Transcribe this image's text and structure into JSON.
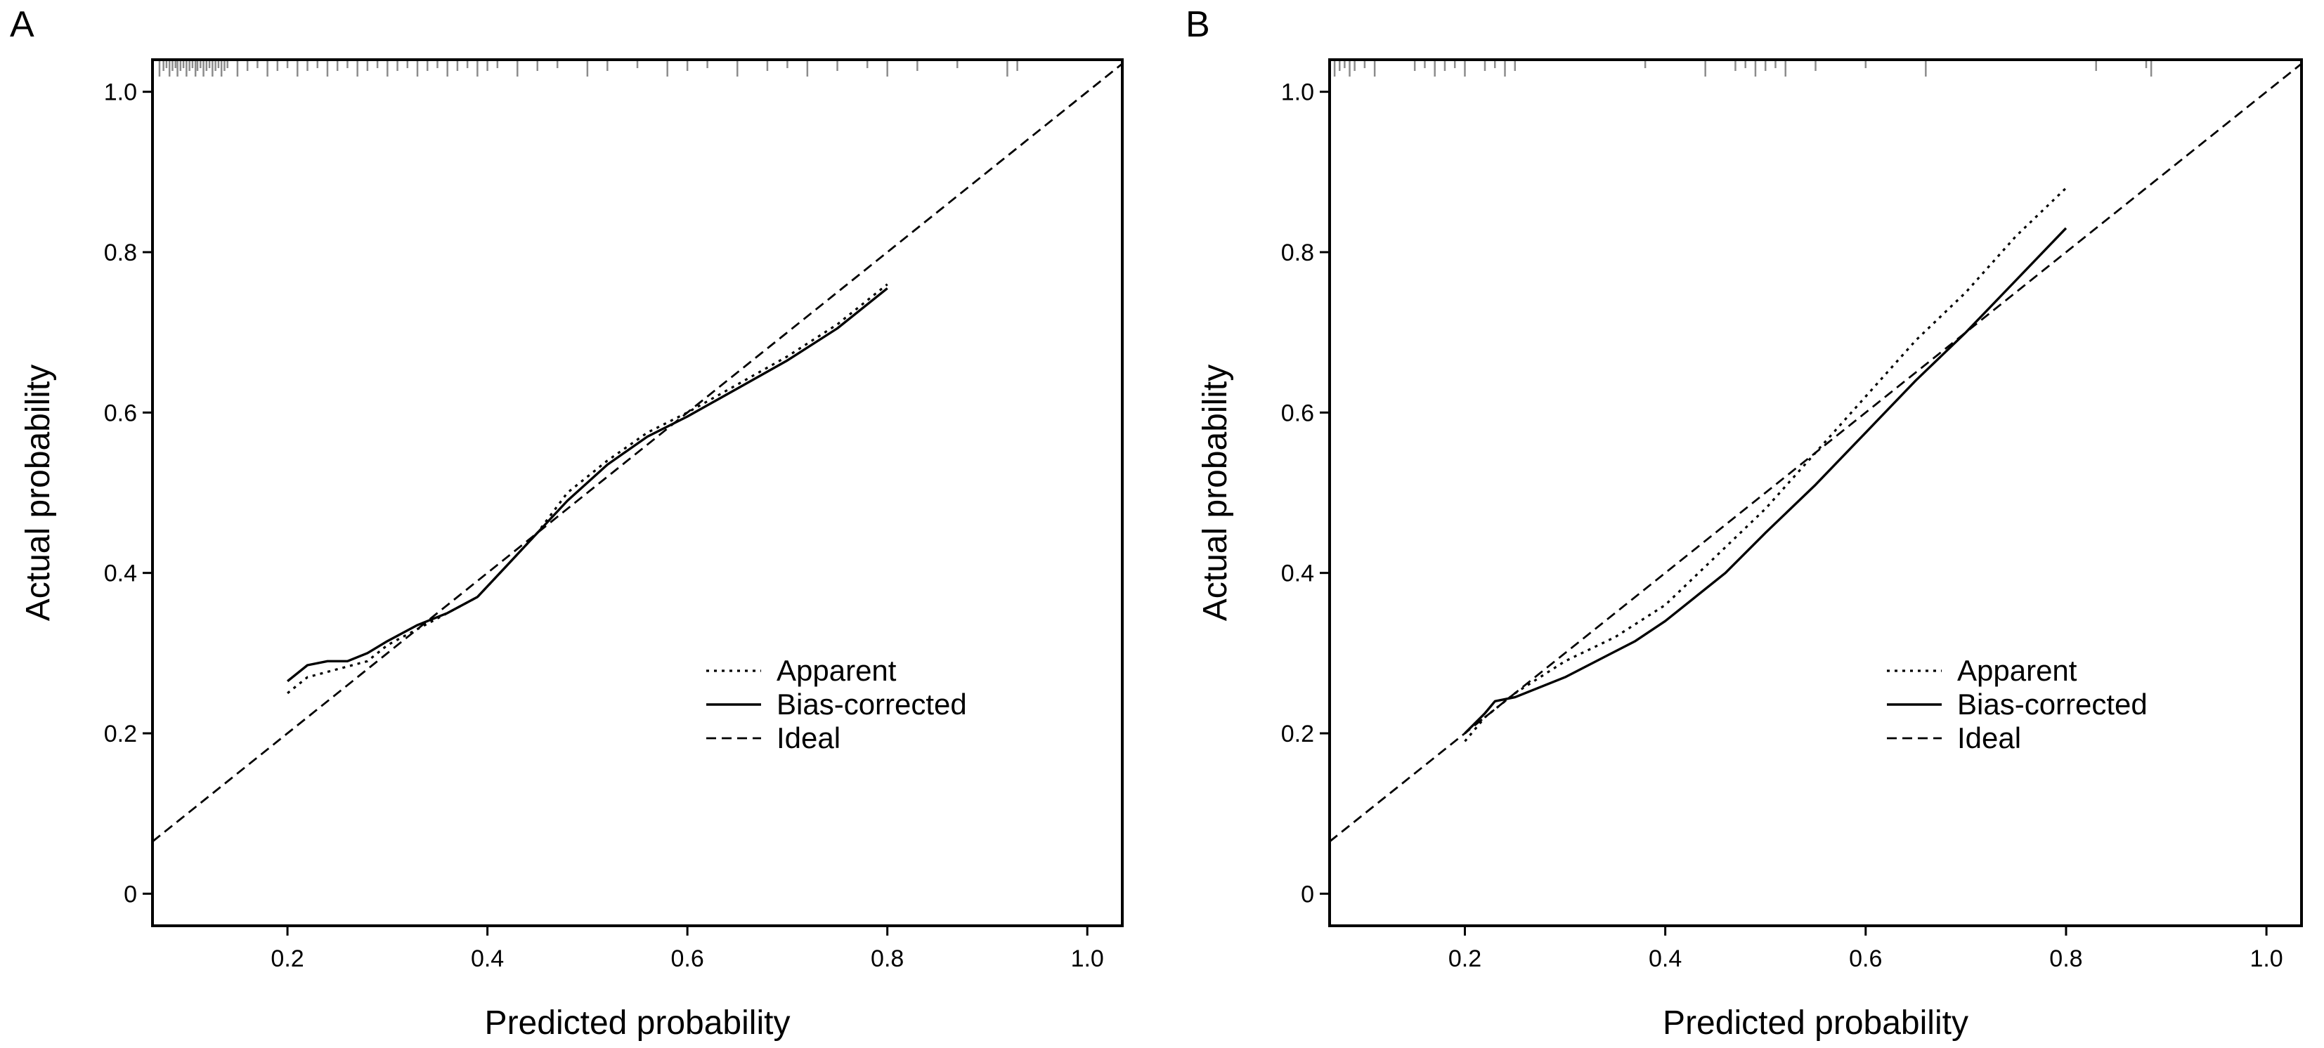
{
  "chart_data": [
    {
      "type": "line",
      "panel_label": "A",
      "xlabel": "Predicted probability",
      "ylabel": "Actual probability",
      "xlim": [
        0.065,
        1.035
      ],
      "ylim": [
        -0.04,
        1.04
      ],
      "xticks": [
        0.2,
        0.4,
        0.6,
        0.8,
        1.0
      ],
      "xtick_labels": [
        "0.2",
        "0.4",
        "0.6",
        "0.8",
        "1.0"
      ],
      "yticks": [
        0,
        0.2,
        0.4,
        0.6,
        0.8,
        1.0
      ],
      "ytick_labels": [
        "0",
        "0.2",
        "0.4",
        "0.6",
        "0.8",
        "1.0"
      ],
      "legend": {
        "position": "lower-right",
        "entries": [
          "Apparent",
          "Bias-corrected",
          "Ideal"
        ]
      },
      "series": [
        {
          "name": "Apparent",
          "style": "dotted",
          "x": [
            0.2,
            0.22,
            0.25,
            0.28,
            0.3,
            0.33,
            0.36,
            0.39,
            0.42,
            0.45,
            0.48,
            0.52,
            0.56,
            0.6,
            0.65,
            0.7,
            0.75,
            0.8
          ],
          "y": [
            0.25,
            0.27,
            0.28,
            0.29,
            0.31,
            0.33,
            0.35,
            0.37,
            0.41,
            0.45,
            0.5,
            0.54,
            0.575,
            0.6,
            0.635,
            0.67,
            0.71,
            0.76
          ]
        },
        {
          "name": "Bias-corrected",
          "style": "solid",
          "x": [
            0.2,
            0.22,
            0.24,
            0.26,
            0.28,
            0.3,
            0.33,
            0.36,
            0.39,
            0.42,
            0.45,
            0.48,
            0.52,
            0.56,
            0.6,
            0.65,
            0.7,
            0.75,
            0.8
          ],
          "y": [
            0.265,
            0.285,
            0.29,
            0.29,
            0.3,
            0.315,
            0.335,
            0.35,
            0.37,
            0.41,
            0.45,
            0.49,
            0.535,
            0.57,
            0.595,
            0.63,
            0.665,
            0.705,
            0.755
          ]
        },
        {
          "name": "Ideal",
          "style": "dashed",
          "x": [
            0.065,
            1.035
          ],
          "y": [
            0.065,
            1.035
          ]
        }
      ],
      "rug_x": [
        0.072,
        0.076,
        0.079,
        0.082,
        0.085,
        0.088,
        0.09,
        0.093,
        0.096,
        0.099,
        0.102,
        0.105,
        0.108,
        0.11,
        0.113,
        0.116,
        0.119,
        0.122,
        0.125,
        0.128,
        0.131,
        0.134,
        0.137,
        0.14,
        0.15,
        0.16,
        0.17,
        0.18,
        0.19,
        0.2,
        0.21,
        0.22,
        0.23,
        0.24,
        0.25,
        0.26,
        0.27,
        0.28,
        0.29,
        0.3,
        0.31,
        0.32,
        0.33,
        0.34,
        0.35,
        0.36,
        0.37,
        0.38,
        0.39,
        0.4,
        0.41,
        0.43,
        0.45,
        0.47,
        0.5,
        0.52,
        0.55,
        0.58,
        0.6,
        0.62,
        0.65,
        0.68,
        0.7,
        0.72,
        0.75,
        0.78,
        0.8,
        0.83,
        0.87,
        0.92,
        0.93
      ]
    },
    {
      "type": "line",
      "panel_label": "B",
      "xlabel": "Predicted probability",
      "ylabel": "Actual probability",
      "xlim": [
        0.065,
        1.035
      ],
      "ylim": [
        -0.04,
        1.04
      ],
      "xticks": [
        0.2,
        0.4,
        0.6,
        0.8,
        1.0
      ],
      "xtick_labels": [
        "0.2",
        "0.4",
        "0.6",
        "0.8",
        "1.0"
      ],
      "yticks": [
        0,
        0.2,
        0.4,
        0.6,
        0.8,
        1.0
      ],
      "ytick_labels": [
        "0",
        "0.2",
        "0.4",
        "0.6",
        "0.8",
        "1.0"
      ],
      "legend": {
        "position": "lower-right",
        "entries": [
          "Apparent",
          "Bias-corrected",
          "Ideal"
        ]
      },
      "series": [
        {
          "name": "Apparent",
          "style": "dotted",
          "x": [
            0.2,
            0.22,
            0.25,
            0.3,
            0.35,
            0.4,
            0.45,
            0.5,
            0.55,
            0.6,
            0.65,
            0.7,
            0.75,
            0.8
          ],
          "y": [
            0.19,
            0.22,
            0.25,
            0.29,
            0.32,
            0.36,
            0.42,
            0.48,
            0.55,
            0.62,
            0.69,
            0.75,
            0.82,
            0.88
          ]
        },
        {
          "name": "Bias-corrected",
          "style": "solid",
          "x": [
            0.2,
            0.22,
            0.23,
            0.25,
            0.3,
            0.37,
            0.4,
            0.46,
            0.5,
            0.55,
            0.6,
            0.65,
            0.7,
            0.75,
            0.8
          ],
          "y": [
            0.2,
            0.225,
            0.24,
            0.245,
            0.27,
            0.315,
            0.34,
            0.4,
            0.45,
            0.51,
            0.575,
            0.64,
            0.7,
            0.765,
            0.83
          ]
        },
        {
          "name": "Ideal",
          "style": "dashed",
          "x": [
            0.065,
            1.035
          ],
          "y": [
            0.065,
            1.035
          ]
        }
      ],
      "rug_x": [
        0.07,
        0.075,
        0.08,
        0.085,
        0.09,
        0.1,
        0.11,
        0.15,
        0.16,
        0.17,
        0.18,
        0.19,
        0.2,
        0.22,
        0.23,
        0.24,
        0.25,
        0.38,
        0.44,
        0.47,
        0.48,
        0.49,
        0.5,
        0.51,
        0.52,
        0.55,
        0.6,
        0.66,
        0.83,
        0.88,
        0.885
      ]
    }
  ]
}
